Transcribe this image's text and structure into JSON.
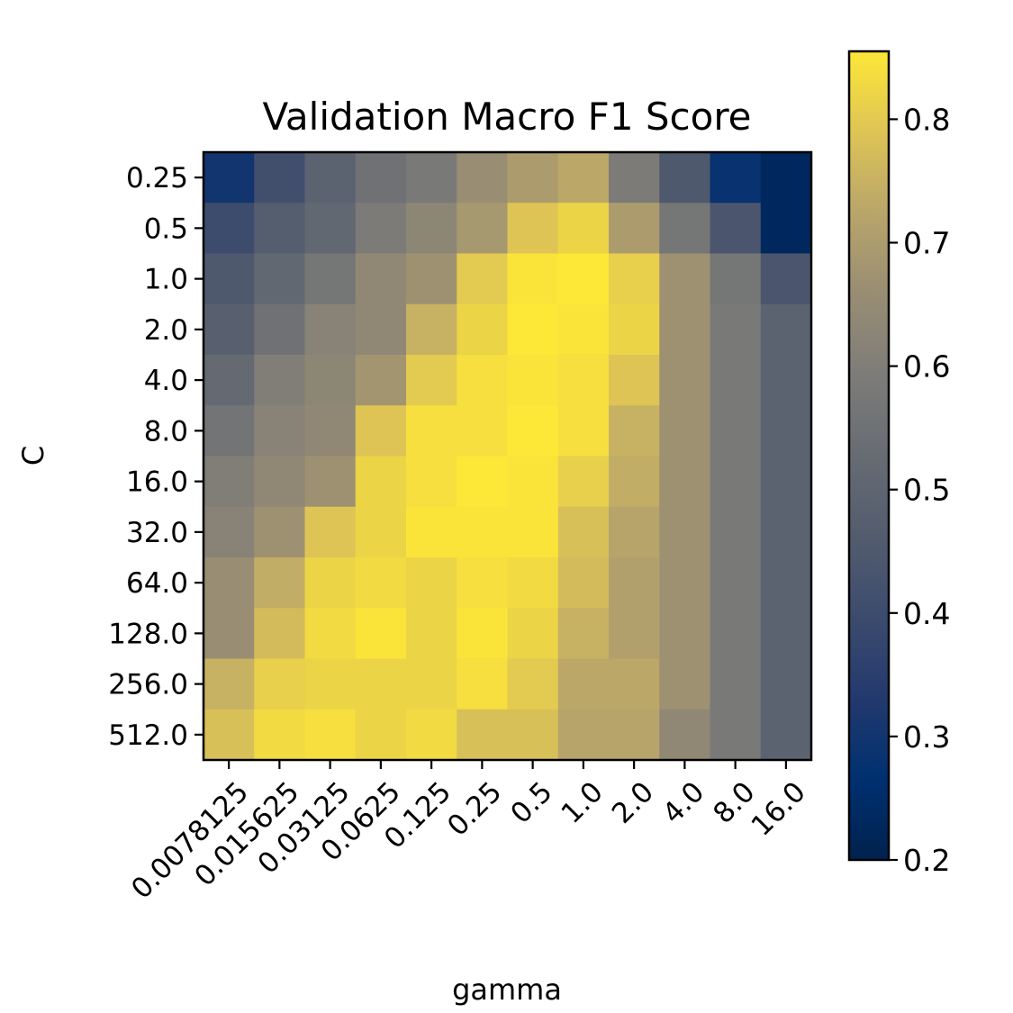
{
  "chart_data": {
    "type": "heatmap",
    "title": "Validation Macro F1 Score",
    "xlabel": "gamma",
    "ylabel": "C",
    "x_categories": [
      "0.0078125",
      "0.015625",
      "0.03125",
      "0.0625",
      "0.125",
      "0.25",
      "0.5",
      "1.0",
      "2.0",
      "4.0",
      "8.0",
      "16.0"
    ],
    "y_categories": [
      "0.25",
      "0.5",
      "1.0",
      "2.0",
      "4.0",
      "8.0",
      "16.0",
      "32.0",
      "64.0",
      "128.0",
      "256.0",
      "512.0"
    ],
    "values": [
      [
        0.3,
        0.41,
        0.49,
        0.55,
        0.58,
        0.66,
        0.7,
        0.73,
        0.59,
        0.45,
        0.28,
        0.23
      ],
      [
        0.4,
        0.47,
        0.51,
        0.59,
        0.63,
        0.69,
        0.79,
        0.82,
        0.7,
        0.57,
        0.44,
        0.23
      ],
      [
        0.45,
        0.51,
        0.57,
        0.64,
        0.67,
        0.8,
        0.85,
        0.86,
        0.81,
        0.67,
        0.57,
        0.44
      ],
      [
        0.48,
        0.55,
        0.62,
        0.64,
        0.75,
        0.82,
        0.86,
        0.85,
        0.82,
        0.67,
        0.58,
        0.49
      ],
      [
        0.52,
        0.6,
        0.63,
        0.68,
        0.8,
        0.84,
        0.85,
        0.84,
        0.79,
        0.67,
        0.58,
        0.49
      ],
      [
        0.56,
        0.62,
        0.64,
        0.79,
        0.84,
        0.84,
        0.86,
        0.84,
        0.75,
        0.67,
        0.58,
        0.49
      ],
      [
        0.6,
        0.64,
        0.67,
        0.82,
        0.84,
        0.86,
        0.85,
        0.81,
        0.74,
        0.67,
        0.58,
        0.49
      ],
      [
        0.62,
        0.67,
        0.79,
        0.82,
        0.85,
        0.85,
        0.85,
        0.78,
        0.72,
        0.67,
        0.58,
        0.49
      ],
      [
        0.66,
        0.74,
        0.82,
        0.83,
        0.82,
        0.84,
        0.83,
        0.77,
        0.71,
        0.67,
        0.58,
        0.49
      ],
      [
        0.66,
        0.77,
        0.83,
        0.85,
        0.82,
        0.85,
        0.82,
        0.75,
        0.71,
        0.67,
        0.58,
        0.49
      ],
      [
        0.75,
        0.81,
        0.82,
        0.82,
        0.82,
        0.84,
        0.8,
        0.73,
        0.73,
        0.67,
        0.58,
        0.49
      ],
      [
        0.78,
        0.83,
        0.84,
        0.82,
        0.83,
        0.78,
        0.78,
        0.72,
        0.72,
        0.64,
        0.58,
        0.49
      ]
    ],
    "colormap": "cividis",
    "vmin": 0.2,
    "vmax": 0.855,
    "colorbar_ticks": [
      "0.2",
      "0.3",
      "0.4",
      "0.5",
      "0.6",
      "0.7",
      "0.8"
    ],
    "grid": false,
    "colorbar_position": "right"
  }
}
